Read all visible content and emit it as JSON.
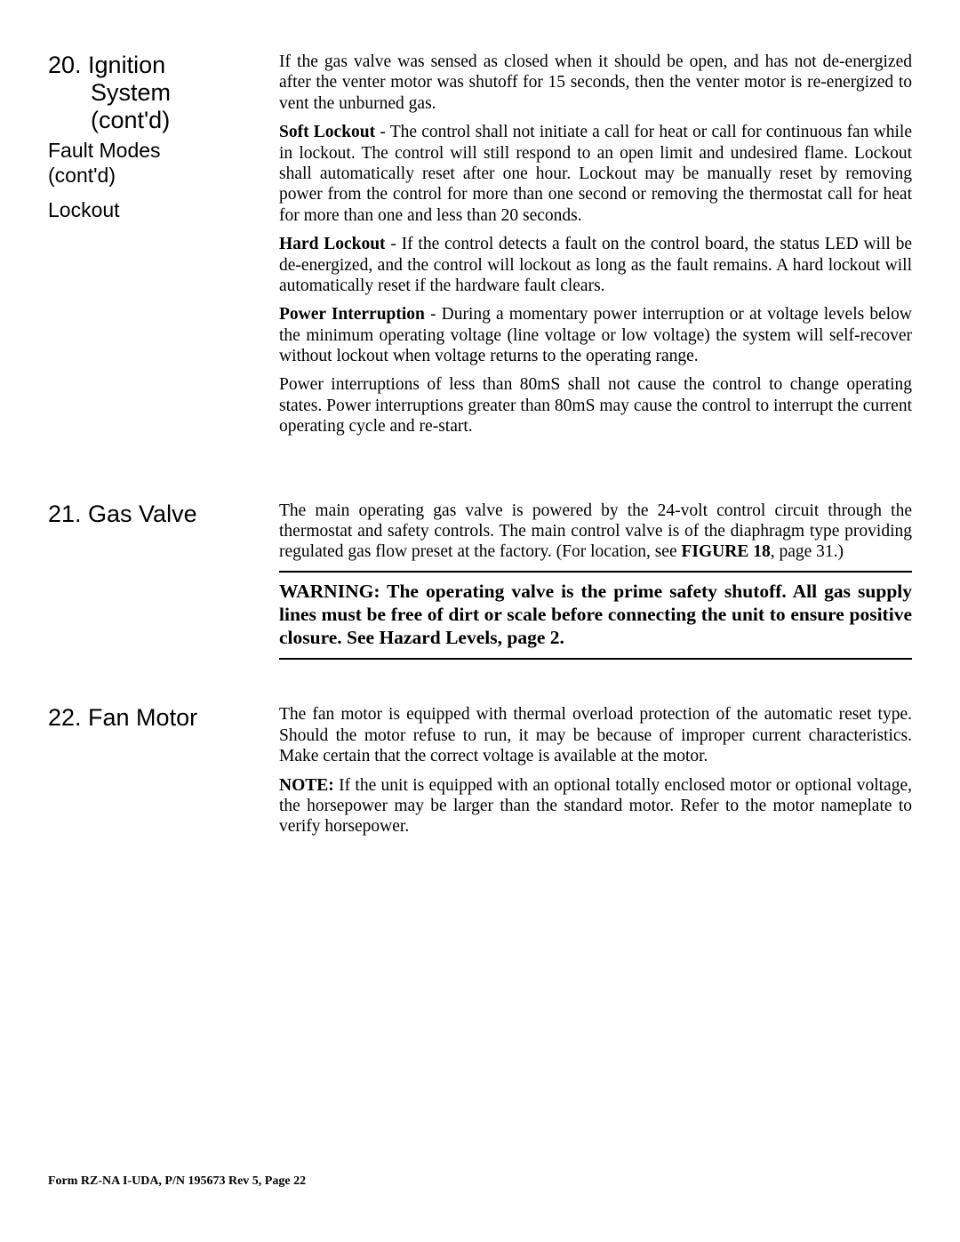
{
  "section20": {
    "heading_line1": "20. Ignition",
    "heading_line2": "System",
    "heading_line3": "(cont'd)",
    "sub1_line1": "Fault Modes",
    "sub1_line2": "(cont'd)",
    "sub2": "Lockout",
    "para1": "If the gas valve was sensed as closed when it should be open, and has not de-energized after the venter motor was shutoff for 15 seconds, then the venter motor is re-energized to vent the unburned gas.",
    "para2_lead": "Soft Lockout",
    "para2_rest": " - The control shall not initiate a call for heat or call for continuous fan while in lockout. The control will still respond to an open limit and undesired flame. Lockout shall automatically reset after one hour. Lockout may be manually reset by removing power from the control for more than one second or removing the thermostat call for heat for more than one and less than 20 seconds.",
    "para3_lead": "Hard Lockout",
    "para3_rest": " - If the control detects a fault on the control board, the status LED will be de-energized, and the control will lockout as long as the fault remains. A hard lockout will automatically reset if the hardware fault clears.",
    "para4_lead": "Power Interruption",
    "para4_rest": " - During a momentary power interruption or at voltage levels below the minimum operating voltage (line voltage or low voltage) the system will self-recover without lockout when voltage returns to the operating range.",
    "para5": "Power interruptions of less than 80mS shall not cause the control to change operating states. Power interruptions greater than 80mS may cause the control to interrupt the current operating cycle and re-start."
  },
  "section21": {
    "heading": "21. Gas Valve",
    "para1_a": "The main operating gas valve is powered by the 24-volt control circuit through the thermostat and safety controls. The main control valve is of the diaphragm type providing regulated gas flow preset at the factory. (For location, see ",
    "para1_bold": "FIGURE 18",
    "para1_b": ", page 31.)",
    "warning": "WARNING: The operating valve is the prime safety shutoff. All gas supply lines must be free of dirt or scale before connecting the unit to ensure positive closure. See Hazard Levels, page 2."
  },
  "section22": {
    "heading": "22. Fan Motor",
    "para1": "The fan motor is equipped with thermal overload protection of the automatic reset type. Should the motor refuse to run, it may be because of improper current characteristics. Make certain that the correct voltage is available at the motor.",
    "para2_lead": "NOTE:",
    "para2_rest": " If the unit is equipped with an optional totally enclosed motor or optional voltage, the horsepower may be larger than the standard motor. Refer to the motor nameplate to verify horsepower."
  },
  "footer": "Form RZ-NA I-UDA, P/N 195673 Rev 5, Page 22"
}
